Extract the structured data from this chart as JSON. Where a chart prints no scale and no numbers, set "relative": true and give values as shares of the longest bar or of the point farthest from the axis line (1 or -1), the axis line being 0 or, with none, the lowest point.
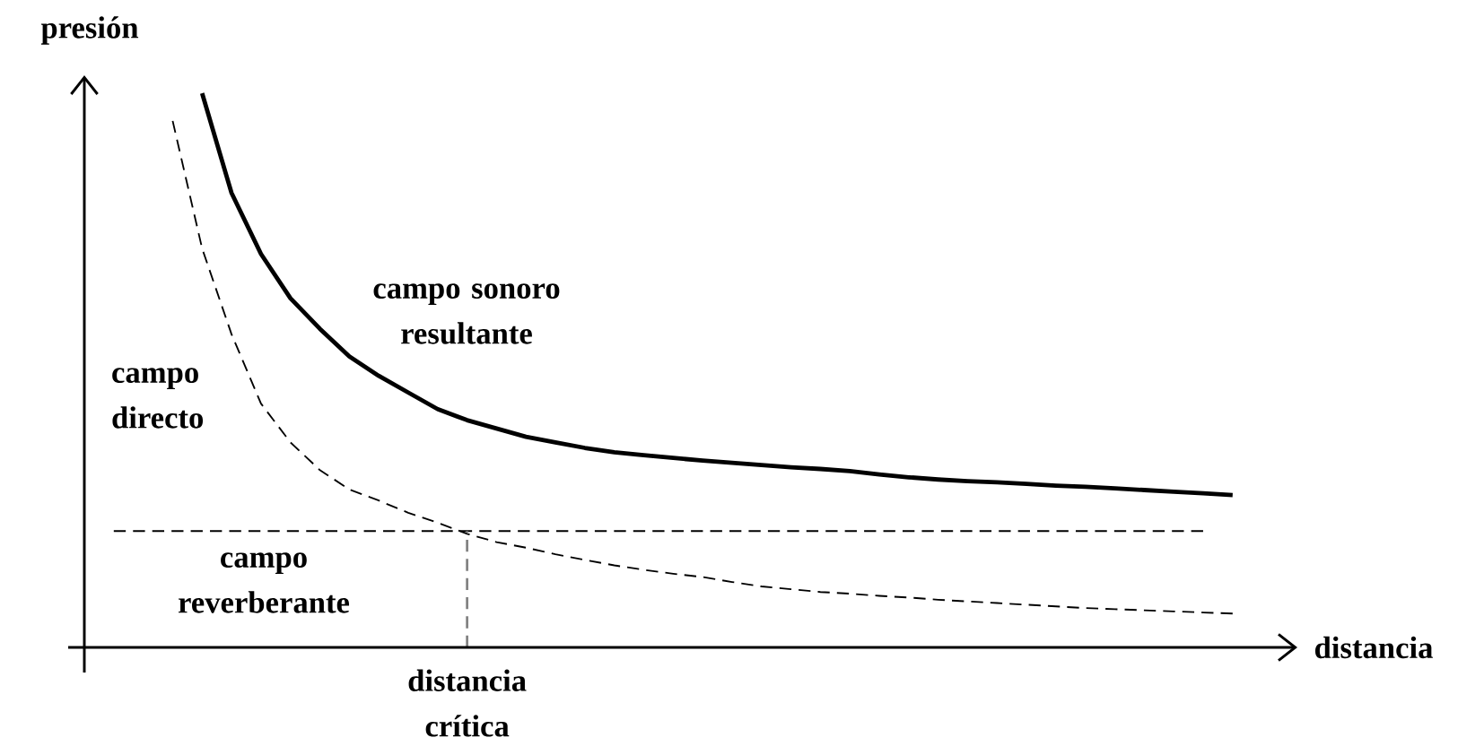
{
  "chart_data": {
    "type": "line",
    "relative": true,
    "xlabel": "distancia",
    "ylabel": "presión",
    "categories": [
      null,
      null,
      null,
      null,
      null,
      null,
      null,
      null,
      null,
      null,
      null,
      null,
      null,
      null,
      null,
      null,
      null,
      null,
      null,
      null,
      null,
      null,
      null,
      null,
      null,
      null,
      null,
      null,
      null,
      null,
      null,
      null,
      null,
      null,
      null,
      null,
      null,
      null,
      null,
      null
    ],
    "series": [
      {
        "name": "campo sonoro resultante",
        "color": "#000000",
        "line_style": "solid",
        "values": [
          null,
          null,
          null,
          null,
          1,
          0.82,
          0.71,
          0.63,
          0.575,
          0.525,
          0.49,
          0.46,
          0.43,
          0.41,
          0.395,
          0.38,
          0.37,
          0.36,
          0.352,
          0.347,
          0.342,
          0.337,
          0.333,
          0.329,
          0.325,
          0.322,
          0.318,
          0.312,
          0.307,
          0.303,
          0.3,
          0.298,
          0.295,
          0.292,
          0.29,
          0.287,
          0.284,
          0.281,
          0.278,
          0.275
        ]
      },
      {
        "name": "campo directo",
        "color": "#000000",
        "line_style": "dashed",
        "values": [
          null,
          null,
          null,
          0.95,
          0.72,
          0.565,
          0.44,
          0.37,
          0.32,
          0.285,
          0.265,
          0.243,
          0.225,
          0.205,
          0.19,
          0.18,
          0.168,
          0.158,
          0.148,
          0.14,
          0.133,
          0.127,
          0.118,
          0.11,
          0.105,
          0.1,
          0.097,
          0.093,
          0.09,
          0.086,
          0.083,
          0.08,
          0.077,
          0.074,
          0.071,
          0.069,
          0.067,
          0.065,
          0.063,
          0.061
        ]
      },
      {
        "name": "campo reverberante",
        "color": "#000000",
        "line_style": "dashed",
        "values": [
          null,
          0.21,
          0.21,
          0.21,
          0.21,
          0.21,
          0.21,
          0.21,
          0.21,
          0.21,
          0.21,
          0.21,
          0.21,
          0.21,
          0.21,
          0.21,
          0.21,
          0.21,
          0.21,
          0.21,
          0.21,
          0.21,
          0.21,
          0.21,
          0.21,
          0.21,
          0.21,
          0.21,
          0.21,
          0.21,
          0.21,
          0.21,
          0.21,
          0.21,
          0.21,
          0.21,
          0.21,
          0.21,
          0.21,
          null
        ]
      }
    ],
    "annotations": [
      "distancia crítica"
    ]
  }
}
